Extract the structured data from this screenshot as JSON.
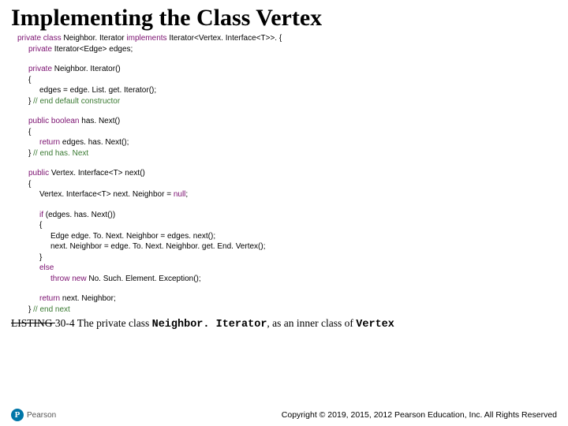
{
  "title": "Implementing the Class Vertex",
  "code": {
    "l1a": "private class ",
    "l1b": "Neighbor. Iterator ",
    "l1c": "implements ",
    "l1d": "Iterator<Vertex. Interface<T>>. {",
    "l2a": "private ",
    "l2b": "Iterator<Edge> edges;",
    "l3a": "private ",
    "l3b": "Neighbor. Iterator()",
    "l4": "{",
    "l5": "edges = edge. List. get. Iterator();",
    "l6a": "} ",
    "l6b": "// end default constructor",
    "l7a": "public boolean ",
    "l7b": "has. Next()",
    "l8": "{",
    "l9a": "return ",
    "l9b": "edges. has. Next();",
    "l10a": "} ",
    "l10b": "// end has. Next",
    "l11a": "public ",
    "l11b": "Vertex. Interface<T> next()",
    "l12": "{",
    "l13a": "Vertex. Interface<T> next. Neighbor = ",
    "l13b": "null",
    "l13c": ";",
    "l14a": "if ",
    "l14b": "(edges. has. Next())",
    "l15": "{",
    "l16": "Edge edge. To. Next. Neighbor = edges. next();",
    "l17": "next. Neighbor = edge. To. Next. Neighbor. get. End. Vertex();",
    "l18": "}",
    "l19": "else",
    "l20a": "throw new ",
    "l20b": "No. Such. Element. Exception();",
    "l21a": "return ",
    "l21b": "next. Neighbor;",
    "l22a": "} ",
    "l22b": "// end next"
  },
  "caption": {
    "listing_prefix": "LISTING ",
    "listing_num": "30-4",
    "text1": " The private class ",
    "classname": "Neighbor. Iterator",
    "text2": ", as an inner class of ",
    "vertex": "Vertex"
  },
  "footer": {
    "logo_letter": "P",
    "logo_text": "Pearson",
    "copyright": "Copyright © 2019, 2015, 2012 Pearson Education, Inc. All Rights Reserved"
  }
}
